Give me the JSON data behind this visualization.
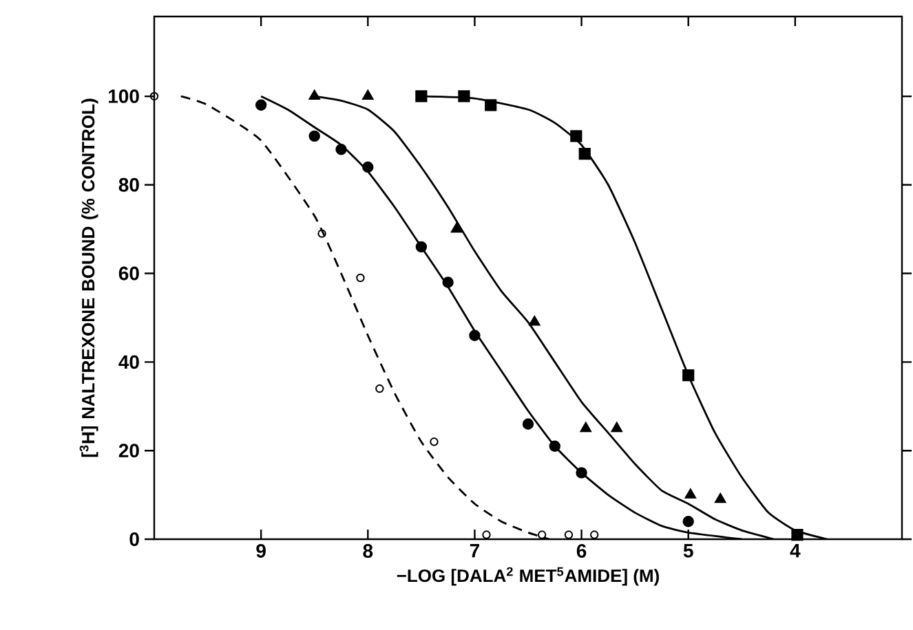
{
  "chart_data": {
    "type": "scatter",
    "xlabel": "−LOG [DALA$^{2}$ MET$^{5}$AMIDE] (M)",
    "ylabel": "[$^{3}$H] NALTREXONE BOUND (% CONTROL)",
    "xlim": [
      10,
      3
    ],
    "ylim": [
      0,
      118
    ],
    "xticks": [
      9,
      8,
      7,
      6,
      5,
      4
    ],
    "yticks": [
      0,
      20,
      40,
      60,
      80,
      100
    ],
    "grid": false,
    "series": [
      {
        "marker": "circle",
        "color": "#000000",
        "x": [
          9,
          8.5,
          8.25,
          8,
          7.5,
          7.25,
          7,
          6.5,
          6.25,
          6,
          5
        ],
        "values": [
          98,
          91,
          88,
          84,
          66,
          58,
          46,
          26,
          21,
          15,
          4
        ]
      },
      {
        "marker": "triangle",
        "color": "#000000",
        "x": [
          8.5,
          8,
          7.17,
          6.44,
          5.96,
          5.67,
          4.98,
          4.7
        ],
        "values": [
          100,
          100,
          70,
          49,
          25,
          25,
          10,
          9
        ]
      },
      {
        "marker": "square",
        "color": "#000000",
        "x": [
          7.5,
          7.1,
          6.85,
          6.05,
          5.97,
          5,
          3.98
        ],
        "values": [
          100,
          100,
          98,
          91,
          87,
          37,
          1
        ]
      },
      {
        "marker": "circle",
        "line_style": "dashed",
        "color": "#000000",
        "x": [
          10,
          8.43,
          8.07,
          7.89,
          7.38,
          6.89,
          6.37,
          6.12,
          5.88
        ],
        "values": [
          100,
          69,
          59,
          34,
          22,
          1,
          1,
          1,
          1
        ]
      },
      {
        "type": "line",
        "line_style": "solid",
        "color": "#000000",
        "x": [
          9,
          8.75,
          8.5,
          8.25,
          8,
          7.75,
          7.5,
          7.25,
          7,
          6.75,
          6.5,
          6.25,
          6,
          5.75,
          5.5,
          5.25,
          5,
          4.5
        ],
        "values": [
          100,
          97,
          93,
          89,
          83,
          75,
          66,
          57,
          47,
          38,
          29,
          21,
          15,
          10,
          6,
          3,
          1.5,
          0
        ]
      },
      {
        "type": "line",
        "line_style": "solid",
        "color": "#000000",
        "x": [
          8.5,
          8.25,
          8,
          7.75,
          7.5,
          7.25,
          7,
          6.75,
          6.5,
          6.25,
          6,
          5.75,
          5.5,
          5.25,
          5,
          4.75,
          4.5,
          4.2
        ],
        "values": [
          100,
          99,
          97,
          92,
          84,
          75,
          65,
          56,
          49,
          40,
          31,
          24,
          17,
          11,
          8,
          4.5,
          2,
          0
        ]
      },
      {
        "type": "line",
        "line_style": "solid",
        "color": "#000000",
        "x": [
          7.5,
          7,
          6.5,
          6.25,
          6,
          5.75,
          5.5,
          5.25,
          5,
          4.75,
          4.5,
          4.25,
          4,
          3.7
        ],
        "values": [
          100,
          99.5,
          97,
          94,
          89,
          80,
          67,
          52,
          37,
          24,
          14,
          6,
          2,
          0
        ]
      },
      {
        "type": "line",
        "line_style": "dashed",
        "color": "#000000",
        "x": [
          9.75,
          9.5,
          9,
          8.5,
          8.25,
          8,
          7.75,
          7.5,
          7.25,
          7,
          6.75,
          6.5,
          6.3
        ],
        "values": [
          100,
          98,
          90,
          73,
          60,
          46,
          33,
          22,
          14,
          8,
          4,
          1.5,
          0
        ]
      }
    ]
  }
}
